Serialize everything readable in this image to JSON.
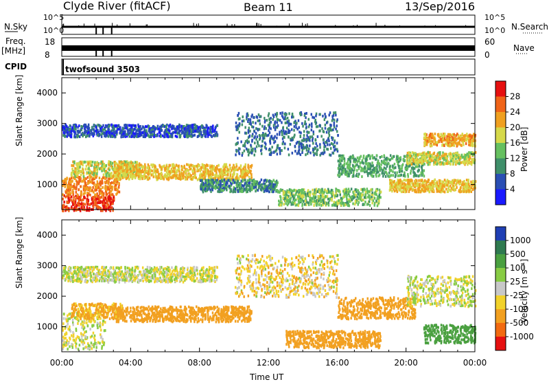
{
  "header": {
    "station": "Clyde River (fitACF)",
    "beam": "Beam 11",
    "date": "13/Sep/2016"
  },
  "panels": {
    "nsky_label": "N.Sky",
    "nsky_ticks": [
      "10^5",
      "10^0"
    ],
    "nsearch_label": "N.Search",
    "nsearch_ticks": [
      "10^5",
      "10^0"
    ],
    "freq_label": "Freq.",
    "freq_unit": "[MHz]",
    "freq_ticks": [
      "18",
      "8"
    ],
    "nave_label": "Nave",
    "nave_ticks": [
      "60",
      "0"
    ],
    "cpid_label": "CPID",
    "cpid_value": "twofsound 3503"
  },
  "chart_data": [
    {
      "type": "heatmap",
      "name": "power",
      "ylabel": "Slant Range [km]",
      "ylim": [
        180,
        4500
      ],
      "yticks": [
        1000,
        2000,
        3000,
        4000
      ],
      "xlim": [
        0,
        24
      ],
      "colorbar_label": "Power [dB]",
      "colorbar_ticks": [
        4,
        8,
        12,
        16,
        20,
        24,
        28
      ],
      "colorbar_colors": [
        "#1a1aff",
        "#2a4fb4",
        "#3f8f6a",
        "#66c060",
        "#d6d94a",
        "#f0a020",
        "#f06418",
        "#e61010"
      ],
      "bands": [
        {
          "t0": 0.0,
          "t1": 3.0,
          "r0": 180,
          "r1": 700,
          "level": 28
        },
        {
          "t0": 0.0,
          "t1": 3.3,
          "r0": 700,
          "r1": 1300,
          "level": 24
        },
        {
          "t0": 0.5,
          "t1": 4.5,
          "r0": 1300,
          "r1": 1800,
          "level": 18
        },
        {
          "t0": 3.0,
          "t1": 11.0,
          "r0": 1200,
          "r1": 1700,
          "level": 20
        },
        {
          "t0": 8.0,
          "t1": 12.5,
          "r0": 800,
          "r1": 1200,
          "level": 10
        },
        {
          "t0": 12.5,
          "t1": 18.5,
          "r0": 350,
          "r1": 900,
          "level": 14
        },
        {
          "t0": 16.0,
          "t1": 21.0,
          "r0": 1300,
          "r1": 2000,
          "level": 12
        },
        {
          "t0": 19.0,
          "t1": 24.0,
          "r0": 800,
          "r1": 1200,
          "level": 20
        },
        {
          "t0": 20.0,
          "t1": 24.0,
          "r0": 1700,
          "r1": 2100,
          "level": 18
        },
        {
          "t0": 21.0,
          "t1": 24.0,
          "r0": 2300,
          "r1": 2700,
          "level": 22
        },
        {
          "t0": 0.0,
          "t1": 9.0,
          "r0": 2600,
          "r1": 3000,
          "level": 6
        },
        {
          "t0": 10.0,
          "t1": 16.0,
          "r0": 2000,
          "r1": 3400,
          "level": 8
        }
      ]
    },
    {
      "type": "heatmap",
      "name": "velocity",
      "xlabel": "Time UT",
      "ylabel": "Slant Range [km]",
      "ylim": [
        180,
        4500
      ],
      "yticks": [
        1000,
        2000,
        3000,
        4000
      ],
      "xlim": [
        0,
        24
      ],
      "xticks": [
        "00:00",
        "04:00",
        "08:00",
        "12:00",
        "16:00",
        "20:00",
        "00:00"
      ],
      "colorbar_label": "Velocity [m s⁻¹]",
      "colorbar_ticks": [
        "1000",
        "500",
        "100",
        "25",
        "-25",
        "-100",
        "-500",
        "-1000"
      ],
      "colorbar_colors": [
        "#1f3fb4",
        "#2f7a50",
        "#4aa040",
        "#88cc44",
        "#c8c8c8",
        "#f2d22a",
        "#f2a020",
        "#f26a10",
        "#e61010"
      ],
      "bands": [
        {
          "t0": 0.0,
          "t1": 2.5,
          "r0": 300,
          "r1": 1500,
          "level": 1
        },
        {
          "t0": 3.0,
          "t1": 11.0,
          "r0": 1200,
          "r1": 1700,
          "level": -300
        },
        {
          "t0": 0.5,
          "t1": 3.5,
          "r0": 1300,
          "r1": 1800,
          "level": -150
        },
        {
          "t0": 13.0,
          "t1": 18.5,
          "r0": 350,
          "r1": 900,
          "level": -300
        },
        {
          "t0": 16.0,
          "t1": 20.5,
          "r0": 1300,
          "r1": 2000,
          "level": -400
        },
        {
          "t0": 21.0,
          "t1": 24.0,
          "r0": 500,
          "r1": 1100,
          "level": 200
        },
        {
          "t0": 20.0,
          "t1": 24.0,
          "r0": 1700,
          "r1": 2700,
          "level": 0
        },
        {
          "t0": 0.0,
          "t1": 9.0,
          "r0": 2500,
          "r1": 3000,
          "level": 0
        },
        {
          "t0": 10.0,
          "t1": 16.0,
          "r0": 2000,
          "r1": 3400,
          "level": -60
        }
      ]
    }
  ]
}
